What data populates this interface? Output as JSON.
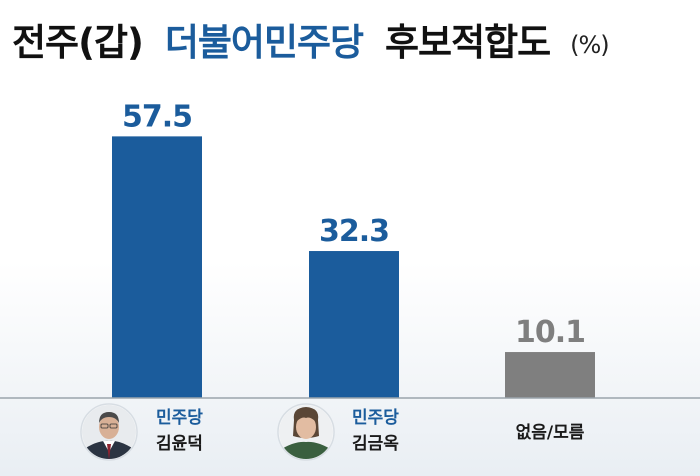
{
  "colors": {
    "party": "#1b5c9c",
    "neutral": "#7f7f7f",
    "title_dark": "#111111",
    "title_accent": "#1b5c9c",
    "background_top": "#ffffff",
    "background_bottom": "#e9eef3"
  },
  "chart_data": {
    "type": "bar",
    "title": {
      "part1": "전주(갑)",
      "part2": "더불어민주당",
      "part3": "후보적합도",
      "unit": "(%)"
    },
    "categories": [
      {
        "party": "민주당",
        "name": "김윤덕",
        "value": 57.5,
        "label": "57.5",
        "color_key": "party",
        "avatar": "male-portrait-icon"
      },
      {
        "party": "민주당",
        "name": "김금옥",
        "value": 32.3,
        "label": "32.3",
        "color_key": "party",
        "avatar": "female-portrait-icon"
      },
      {
        "party": "",
        "name": "없음/모름",
        "value": 10.1,
        "label": "10.1",
        "color_key": "neutral",
        "avatar": ""
      }
    ],
    "ylim": [
      0,
      66
    ],
    "grid": false,
    "legend": "none"
  }
}
